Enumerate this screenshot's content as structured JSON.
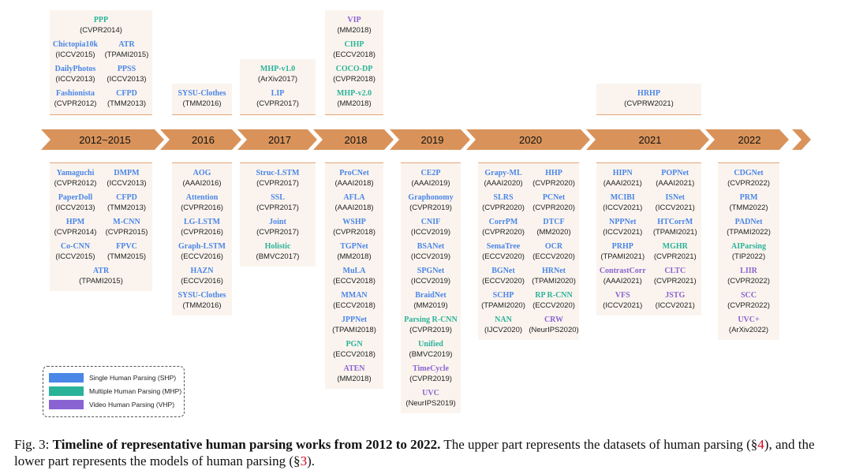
{
  "colors": {
    "shp": "#4a86e8",
    "mhp": "#2bb39a",
    "vhp": "#8a63d2",
    "arrow": "#d9935a",
    "panel": "#fbf4ee"
  },
  "periods": [
    {
      "label": "2012~2015",
      "top": [
        [
          {
            "name": "PPP",
            "venue": "(CVPR2014)",
            "cat": "mhp"
          }
        ],
        [
          {
            "name": "Chictopia10k",
            "venue": "(ICCV2015)",
            "cat": "shp"
          },
          {
            "name": "ATR",
            "venue": "(TPAMI2015)",
            "cat": "shp"
          }
        ],
        [
          {
            "name": "DailyPhotos",
            "venue": "(ICCV2013)",
            "cat": "shp"
          },
          {
            "name": "PPSS",
            "venue": "(ICCV2013)",
            "cat": "shp"
          }
        ],
        [
          {
            "name": "Fashionista",
            "venue": "(CVPR2012)",
            "cat": "shp"
          },
          {
            "name": "CFPD",
            "venue": "(TMM2013)",
            "cat": "shp"
          }
        ]
      ],
      "bottom": [
        [
          {
            "name": "Yamaguchi",
            "venue": "(CVPR2012)",
            "cat": "shp"
          },
          {
            "name": "DMPM",
            "venue": "(ICCV2013)",
            "cat": "shp"
          }
        ],
        [
          {
            "name": "PaperDoll",
            "venue": "(ICCV2013)",
            "cat": "shp"
          },
          {
            "name": "CFPD",
            "venue": "(TMM2013)",
            "cat": "shp"
          }
        ],
        [
          {
            "name": "HPM",
            "venue": "(CVPR2014)",
            "cat": "shp"
          },
          {
            "name": "M-CNN",
            "venue": "(CVPR2015)",
            "cat": "shp"
          }
        ],
        [
          {
            "name": "Co-CNN",
            "venue": "(ICCV2015)",
            "cat": "shp"
          },
          {
            "name": "FPVC",
            "venue": "(TMM2015)",
            "cat": "shp"
          }
        ],
        [
          {
            "name": "ATR",
            "venue": "(TPAMI2015)",
            "cat": "shp"
          }
        ]
      ]
    },
    {
      "label": "2016",
      "top": [
        [
          {
            "name": "SYSU-Clothes",
            "venue": "(TMM2016)",
            "cat": "shp"
          }
        ]
      ],
      "bottom": [
        [
          {
            "name": "AOG",
            "venue": "(AAAI2016)",
            "cat": "shp"
          }
        ],
        [
          {
            "name": "Attention",
            "venue": "(CVPR2016)",
            "cat": "shp"
          }
        ],
        [
          {
            "name": "LG-LSTM",
            "venue": "(CVPR2016)",
            "cat": "shp"
          }
        ],
        [
          {
            "name": "Graph-LSTM",
            "venue": "(ECCV2016)",
            "cat": "shp"
          }
        ],
        [
          {
            "name": "HAZN",
            "venue": "(ECCV2016)",
            "cat": "shp"
          }
        ],
        [
          {
            "name": "SYSU-Clothes",
            "venue": "(TMM2016)",
            "cat": "shp"
          }
        ]
      ]
    },
    {
      "label": "2017",
      "top": [
        [
          {
            "name": "MHP-v1.0",
            "venue": "(ArXiv2017)",
            "cat": "mhp"
          }
        ],
        [
          {
            "name": "LIP",
            "venue": "(CVPR2017)",
            "cat": "shp"
          }
        ]
      ],
      "bottom": [
        [
          {
            "name": "Struc-LSTM",
            "venue": "(CVPR2017)",
            "cat": "shp"
          }
        ],
        [
          {
            "name": "SSL",
            "venue": "(CVPR2017)",
            "cat": "shp"
          }
        ],
        [
          {
            "name": "Joint",
            "venue": "(CVPR2017)",
            "cat": "shp"
          }
        ],
        [
          {
            "name": "Holistic",
            "venue": "(BMVC2017)",
            "cat": "mhp"
          }
        ]
      ]
    },
    {
      "label": "2018",
      "top": [
        [
          {
            "name": "VIP",
            "venue": "(MM2018)",
            "cat": "vhp"
          }
        ],
        [
          {
            "name": "CIHP",
            "venue": "(ECCV2018)",
            "cat": "mhp"
          }
        ],
        [
          {
            "name": "COCO-DP",
            "venue": "(CVPR2018)",
            "cat": "mhp"
          }
        ],
        [
          {
            "name": "MHP-v2.0",
            "venue": "(MM2018)",
            "cat": "mhp"
          }
        ]
      ],
      "bottom": [
        [
          {
            "name": "ProCNet",
            "venue": "(AAAI2018)",
            "cat": "shp"
          }
        ],
        [
          {
            "name": "AFLA",
            "venue": "(AAAI2018)",
            "cat": "shp"
          }
        ],
        [
          {
            "name": "WSHP",
            "venue": "(CVPR2018)",
            "cat": "shp"
          }
        ],
        [
          {
            "name": "TGPNet",
            "venue": "(MM2018)",
            "cat": "shp"
          }
        ],
        [
          {
            "name": "MuLA",
            "venue": "(ECCV2018)",
            "cat": "shp"
          }
        ],
        [
          {
            "name": "MMAN",
            "venue": "(ECCV2018)",
            "cat": "shp"
          }
        ],
        [
          {
            "name": "JPPNet",
            "venue": "(TPAMI2018)",
            "cat": "shp"
          }
        ],
        [
          {
            "name": "PGN",
            "venue": "(ECCV2018)",
            "cat": "mhp"
          }
        ],
        [
          {
            "name": "ATEN",
            "venue": "(MM2018)",
            "cat": "vhp"
          }
        ]
      ]
    },
    {
      "label": "2019",
      "top": [],
      "bottom": [
        [
          {
            "name": "CE2P",
            "venue": "(AAAI2019)",
            "cat": "shp"
          }
        ],
        [
          {
            "name": "Graphonomy",
            "venue": "(CVPR2019)",
            "cat": "shp"
          }
        ],
        [
          {
            "name": "CNIF",
            "venue": "(ICCV2019)",
            "cat": "shp"
          }
        ],
        [
          {
            "name": "BSANet",
            "venue": "(ICCV2019)",
            "cat": "shp"
          }
        ],
        [
          {
            "name": "SPGNet",
            "venue": "(ICCV2019)",
            "cat": "shp"
          }
        ],
        [
          {
            "name": "BraidNet",
            "venue": "(MM2019)",
            "cat": "shp"
          }
        ],
        [
          {
            "name": "Parsing R-CNN",
            "venue": "(CVPR2019)",
            "cat": "mhp"
          }
        ],
        [
          {
            "name": "Unified",
            "venue": "(BMVC2019)",
            "cat": "mhp"
          }
        ],
        [
          {
            "name": "TimeCycle",
            "venue": "(CVPR2019)",
            "cat": "vhp"
          }
        ],
        [
          {
            "name": "UVC",
            "venue": "(NeurIPS2019)",
            "cat": "vhp"
          }
        ]
      ]
    },
    {
      "label": "2020",
      "top": [],
      "bottom": [
        [
          {
            "name": "Grapy-ML",
            "venue": "(AAAI2020)",
            "cat": "shp"
          },
          {
            "name": "HHP",
            "venue": "(CVPR2020)",
            "cat": "shp"
          }
        ],
        [
          {
            "name": "SLRS",
            "venue": "(CVPR2020)",
            "cat": "shp"
          },
          {
            "name": "PCNet",
            "venue": "(CVPR2020)",
            "cat": "shp"
          }
        ],
        [
          {
            "name": "CorrPM",
            "venue": "(CVPR2020)",
            "cat": "shp"
          },
          {
            "name": "DTCF",
            "venue": "(MM2020)",
            "cat": "shp"
          }
        ],
        [
          {
            "name": "SemaTree",
            "venue": "(ECCV2020)",
            "cat": "shp"
          },
          {
            "name": "OCR",
            "venue": "(ECCV2020)",
            "cat": "shp"
          }
        ],
        [
          {
            "name": "BGNet",
            "venue": "(ECCV2020)",
            "cat": "shp"
          },
          {
            "name": "HRNet",
            "venue": "(TPAMI2020)",
            "cat": "shp"
          }
        ],
        [
          {
            "name": "SCHP",
            "venue": "(TPAMI2020)",
            "cat": "shp"
          },
          {
            "name": "RP R-CNN",
            "venue": "(ECCV2020)",
            "cat": "mhp"
          }
        ],
        [
          {
            "name": "NAN",
            "venue": "(IJCV2020)",
            "cat": "mhp"
          },
          {
            "name": "CRW",
            "venue": "(NeurIPS2020)",
            "cat": "vhp"
          }
        ]
      ]
    },
    {
      "label": "2021",
      "top": [
        [
          {
            "name": "HRHP",
            "venue": "(CVPRW2021)",
            "cat": "shp"
          }
        ]
      ],
      "bottom": [
        [
          {
            "name": "HIPN",
            "venue": "(AAAI2021)",
            "cat": "shp"
          },
          {
            "name": "POPNet",
            "venue": "(AAAI2021)",
            "cat": "shp"
          }
        ],
        [
          {
            "name": "MCIBI",
            "venue": "(ICCV2021)",
            "cat": "shp"
          },
          {
            "name": "ISNet",
            "venue": "(ICCV2021)",
            "cat": "shp"
          }
        ],
        [
          {
            "name": "NPPNet",
            "venue": "(ICCV2021)",
            "cat": "shp"
          },
          {
            "name": "HTCorrM",
            "venue": "(TPAMI2021)",
            "cat": "shp"
          }
        ],
        [
          {
            "name": "PRHP",
            "venue": "(TPAMI2021)",
            "cat": "shp"
          },
          {
            "name": "MGHR",
            "venue": "(CVPR2021)",
            "cat": "mhp"
          }
        ],
        [
          {
            "name": "ContrastCorr",
            "venue": "(AAAI2021)",
            "cat": "vhp"
          },
          {
            "name": "CLTC",
            "venue": "(CVPR2021)",
            "cat": "vhp"
          }
        ],
        [
          {
            "name": "VFS",
            "venue": "(ICCV2021)",
            "cat": "vhp"
          },
          {
            "name": "JSTG",
            "venue": "(ICCV2021)",
            "cat": "vhp"
          }
        ]
      ]
    },
    {
      "label": "2022",
      "top": [],
      "bottom": [
        [
          {
            "name": "CDGNet",
            "venue": "(CVPR2022)",
            "cat": "shp"
          }
        ],
        [
          {
            "name": "PRM",
            "venue": "(TMM2022)",
            "cat": "shp"
          }
        ],
        [
          {
            "name": "PADNet",
            "venue": "(TPAMI2022)",
            "cat": "shp"
          }
        ],
        [
          {
            "name": "AIParsing",
            "venue": "(TIP2022)",
            "cat": "mhp"
          }
        ],
        [
          {
            "name": "LIIR",
            "venue": "(CVPR2022)",
            "cat": "vhp"
          }
        ],
        [
          {
            "name": "SCC",
            "venue": "(CVPR2022)",
            "cat": "vhp"
          }
        ],
        [
          {
            "name": "UVC+",
            "venue": "(ArXiv2022)",
            "cat": "vhp"
          }
        ]
      ]
    }
  ],
  "legend": [
    {
      "label": "Single Human Parsing (SHP)",
      "cat": "shp"
    },
    {
      "label": "Multiple Human Parsing (MHP)",
      "cat": "mhp"
    },
    {
      "label": "Video Human Parsing (VHP)",
      "cat": "vhp"
    }
  ],
  "caption": {
    "prefix": "Fig. 3: ",
    "title": "Timeline of representative human parsing works from 2012 to 2022.",
    "body_1": " The upper part represents the datasets of human parsing (§",
    "ref_1": "4",
    "body_2": "), and the lower part represents the models of human parsing (§",
    "ref_2": "3",
    "body_3": ")."
  }
}
